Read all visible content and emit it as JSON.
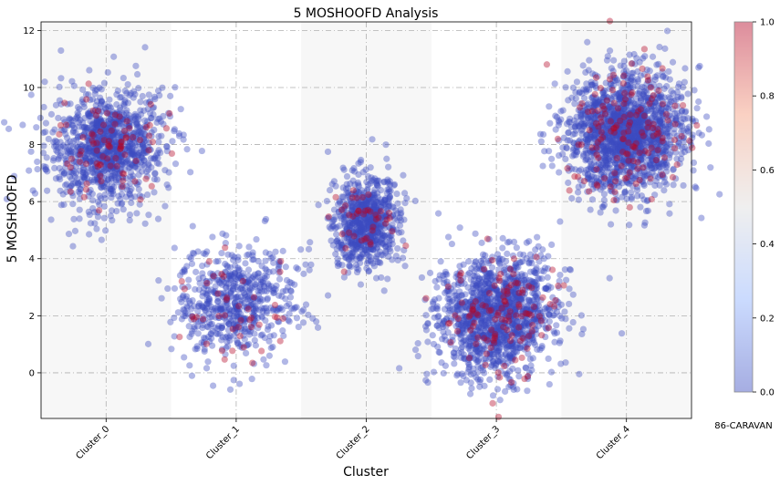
{
  "chart_data": {
    "type": "scatter",
    "title": "5 MOSHOOFD Analysis",
    "xlabel": "Cluster",
    "ylabel": "5 MOSHOOFD",
    "colorbar_label": "86-CARAVAN",
    "categories": [
      "Cluster_0",
      "Cluster_1",
      "Cluster_2",
      "Cluster_3",
      "Cluster_4"
    ],
    "ylim": [
      -1.6,
      12.3
    ],
    "yticks": [
      0,
      2,
      4,
      6,
      8,
      10,
      12
    ],
    "colorbar_range": [
      0.0,
      1.0
    ],
    "colorbar_ticks": [
      "0.0",
      "0.2",
      "0.4",
      "0.6",
      "0.8",
      "1.0"
    ],
    "colormap": "coolwarm",
    "point_alpha": 0.4,
    "grid": true,
    "grid_style": "dash-dot",
    "band_color": "#f7f7f7",
    "series": [
      {
        "cluster": "Cluster_0",
        "y_center": 7.9,
        "y_sd": 1.0,
        "x_spread": 0.45,
        "count": 1100,
        "caravan_share": 0.06
      },
      {
        "cluster": "Cluster_1",
        "y_center": 2.4,
        "y_sd": 1.0,
        "x_spread": 0.45,
        "count": 650,
        "caravan_share": 0.07
      },
      {
        "cluster": "Cluster_2",
        "y_center": 5.3,
        "y_sd": 0.8,
        "x_spread": 0.25,
        "count": 750,
        "caravan_share": 0.05
      },
      {
        "cluster": "Cluster_3",
        "y_center": 2.0,
        "y_sd": 1.05,
        "x_spread": 0.45,
        "count": 1400,
        "caravan_share": 0.08
      },
      {
        "cluster": "Cluster_4",
        "y_center": 8.4,
        "y_sd": 1.05,
        "x_spread": 0.45,
        "count": 1700,
        "caravan_share": 0.07
      }
    ]
  }
}
